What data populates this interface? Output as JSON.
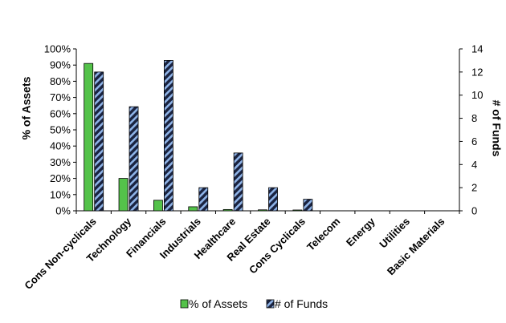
{
  "chart_data": {
    "type": "bar",
    "categories": [
      "Cons Non-cyclicals",
      "Technology",
      "Financials",
      "Industrials",
      "Healthcare",
      "Real Estate",
      "Cons Cyclicals",
      "Telecom",
      "Energy",
      "Utilities",
      "Basic Materials"
    ],
    "series": [
      {
        "name": "% of Assets",
        "axis": "left",
        "values": [
          91,
          20,
          6.5,
          2.5,
          0.8,
          0.6,
          0.5,
          0,
          0,
          0,
          0
        ],
        "color": "#54c24a"
      },
      {
        "name": "# of Funds",
        "axis": "right",
        "values": [
          12,
          9,
          13,
          2,
          5,
          2,
          1,
          0,
          0,
          0,
          0
        ],
        "color": "#1a2340",
        "pattern": "diagonal-blue-stripes"
      }
    ],
    "ylabel": "% of Assets",
    "y2label": "# of Funds",
    "ylim": [
      0,
      100
    ],
    "y2lim": [
      0,
      14
    ],
    "yticks": [
      "0%",
      "10%",
      "20%",
      "30%",
      "40%",
      "50%",
      "60%",
      "70%",
      "80%",
      "90%",
      "100%"
    ],
    "y2ticks": [
      "0",
      "2",
      "4",
      "6",
      "8",
      "10",
      "12",
      "14"
    ],
    "legend": "bottom",
    "grid": false
  }
}
